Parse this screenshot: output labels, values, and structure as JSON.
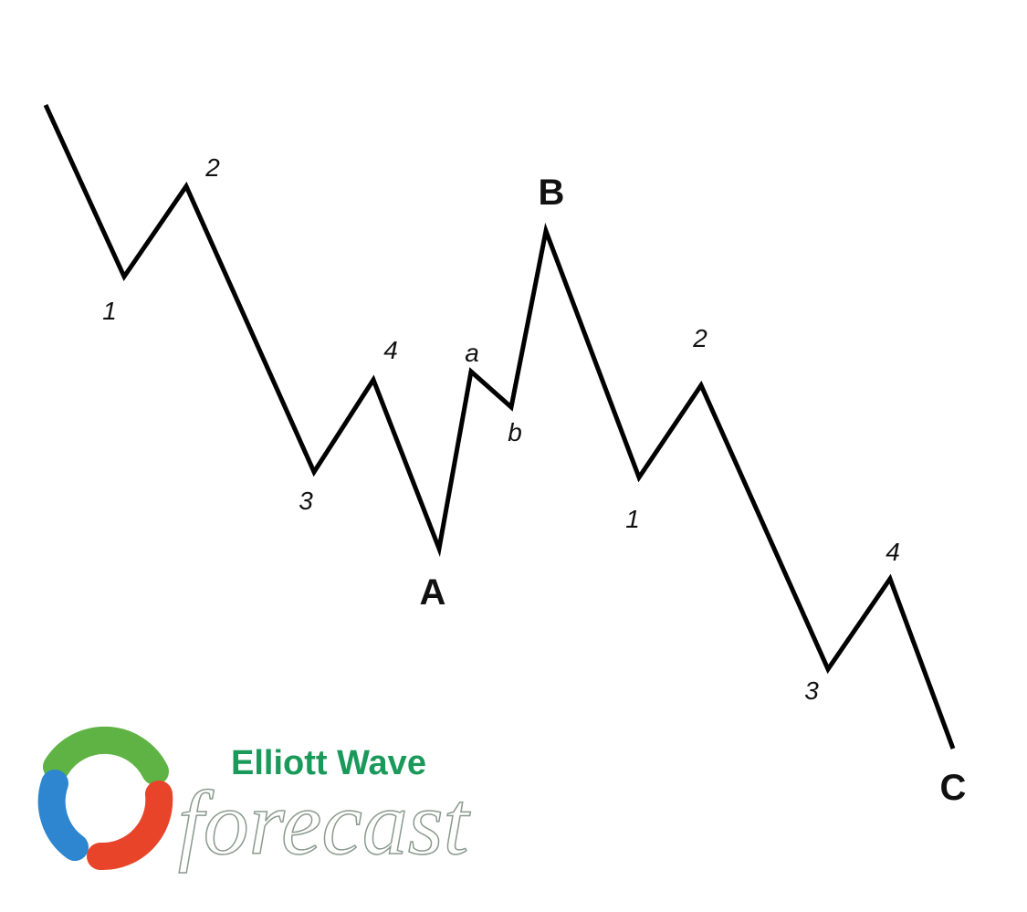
{
  "wave_labels": [
    "1",
    "2",
    "3",
    "4",
    "A",
    "a",
    "b",
    "B",
    "1",
    "2",
    "3",
    "4",
    "C"
  ],
  "logo": {
    "line1": "Elliott Wave",
    "line2": "forecast"
  }
}
